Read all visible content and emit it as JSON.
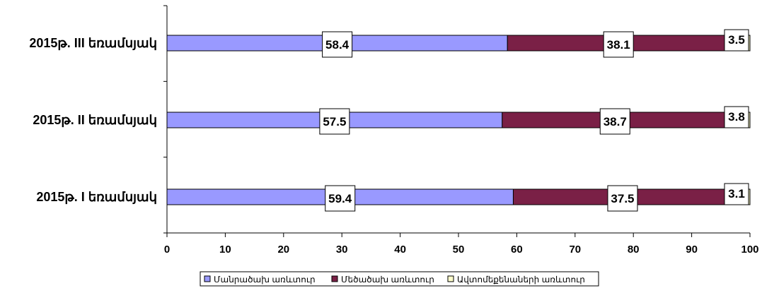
{
  "chart_data": {
    "type": "bar",
    "orientation": "horizontal",
    "stacked": true,
    "categories": [
      "2015թ. III եռամսյակ",
      "2015թ. II եռամսյակ",
      "2015թ. I եռամսյակ"
    ],
    "series": [
      {
        "name": "Մանրածախ առևտուր",
        "values": [
          58.4,
          57.5,
          59.4
        ],
        "color": "#9999ff",
        "label_color": "#000000"
      },
      {
        "name": "Մեծածախ առևտուր",
        "values": [
          38.1,
          38.7,
          37.5
        ],
        "color": "#7a2046",
        "label_color": "#000000"
      },
      {
        "name": "Ավտոմեքենաների առևտուր",
        "values": [
          3.5,
          3.8,
          3.1
        ],
        "color": "#ffffcc",
        "label_color": "#000000"
      }
    ],
    "xlim": [
      0,
      100
    ],
    "xticks": [
      0,
      10,
      20,
      30,
      40,
      50,
      60,
      70,
      80,
      90,
      100
    ],
    "grid": false,
    "legend_position": "bottom"
  }
}
